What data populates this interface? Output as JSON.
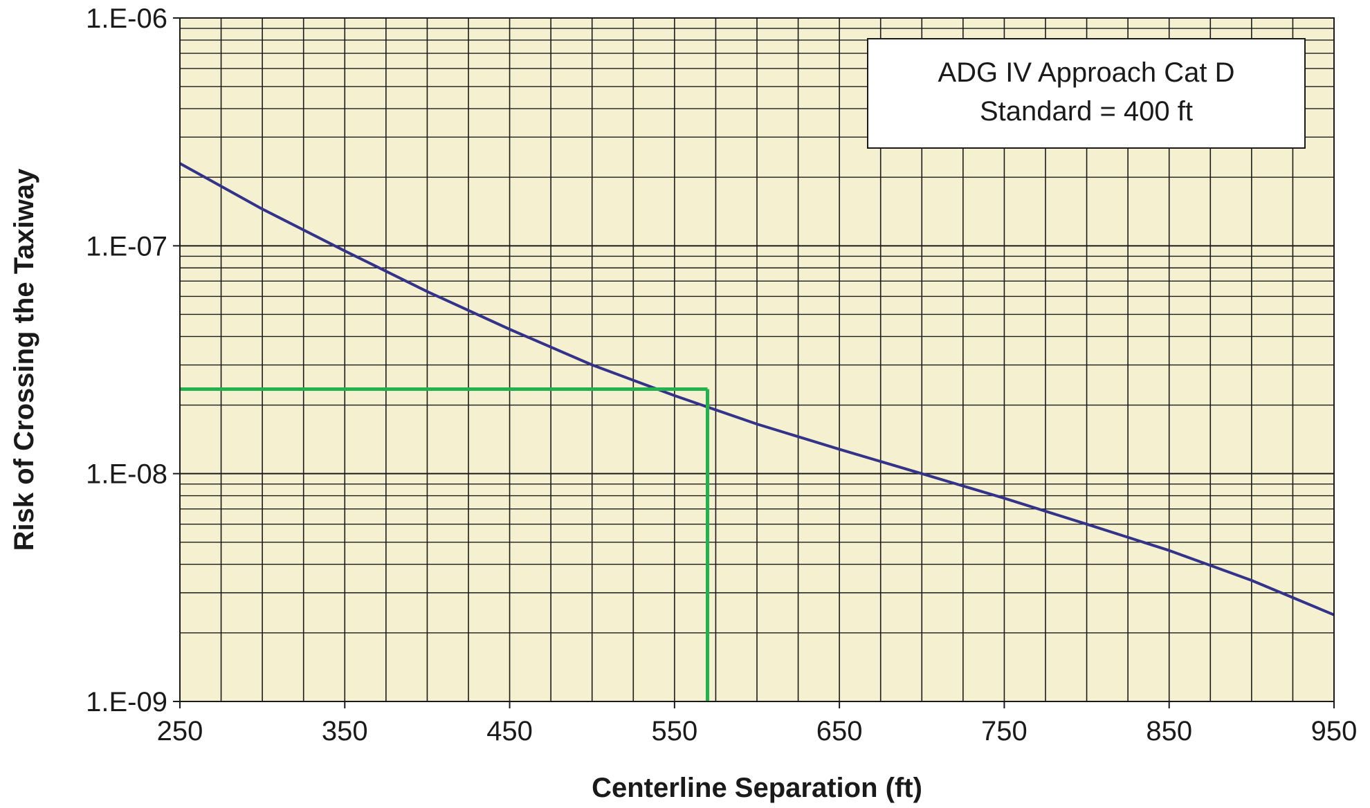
{
  "chart_data": {
    "type": "line",
    "title": "",
    "xlabel": "Centerline Separation (ft)",
    "ylabel": "Risk of Crossing the Taxiway",
    "xlim": [
      250,
      950
    ],
    "ylim": [
      1e-09,
      1e-06
    ],
    "y_scale": "log",
    "x_ticks": [
      250,
      350,
      450,
      550,
      650,
      750,
      850,
      950
    ],
    "x_tick_labels": [
      "250",
      "350",
      "450",
      "550",
      "650",
      "750",
      "850",
      "950"
    ],
    "y_ticks": [
      1e-09,
      1e-08,
      1e-07,
      1e-06
    ],
    "y_tick_labels": [
      "1.E-09",
      "1.E-08",
      "1.E-07",
      "1.E-06"
    ],
    "grid": true,
    "plot_background": "#f5f0d0",
    "annotation_box": {
      "lines": [
        "ADG IV Approach Cat D",
        "Standard = 400 ft"
      ],
      "placement": "top-right"
    },
    "series": [
      {
        "color": "#33338a",
        "x": [
          250,
          300,
          350,
          400,
          450,
          500,
          550,
          600,
          650,
          700,
          750,
          800,
          850,
          900,
          950
        ],
        "y": [
          2.3e-07,
          1.45e-07,
          9.5e-08,
          6.3e-08,
          4.3e-08,
          3e-08,
          2.2e-08,
          1.65e-08,
          1.28e-08,
          1e-08,
          7.8e-09,
          6e-09,
          4.6e-09,
          3.4e-09,
          2.4e-09
        ]
      }
    ],
    "reference_lines": {
      "color": "#22b14c",
      "horizontal": {
        "y": 2.35e-08,
        "x_from": 250,
        "x_to": 570
      },
      "vertical": {
        "x": 570,
        "y_from": 1e-09,
        "y_to": 2.35e-08
      }
    }
  }
}
